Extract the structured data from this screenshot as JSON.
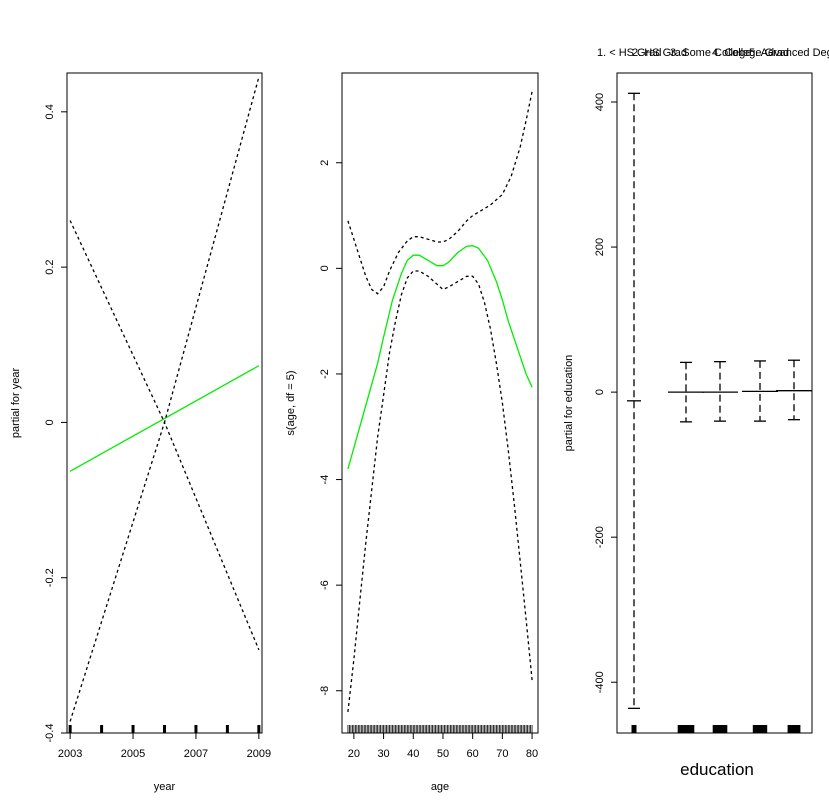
{
  "chart_data": [
    {
      "type": "line",
      "panel": "year",
      "xlabel": "year",
      "ylabel": "partial for year",
      "xlim": [
        2002.9,
        2009.1
      ],
      "ylim": [
        -0.4,
        0.45
      ],
      "xticks": [
        2003,
        2005,
        2007,
        2009
      ],
      "yticks": [
        -0.4,
        -0.2,
        0.0,
        0.2,
        0.4
      ],
      "series": [
        {
          "role": "fit",
          "color": "#00ee00",
          "dash": "",
          "x": [
            2003,
            2009
          ],
          "y": [
            -0.063,
            0.073
          ]
        },
        {
          "role": "upper",
          "color": "#000000",
          "dash": "3,3",
          "x": [
            2003,
            2006,
            2009
          ],
          "y": [
            0.26,
            0.0,
            0.445
          ]
        },
        {
          "role": "lower",
          "color": "#000000",
          "dash": "3,3",
          "x": [
            2003,
            2006,
            2009
          ],
          "y": [
            -0.385,
            0.0,
            -0.293
          ]
        }
      ],
      "rug": [
        2003,
        2004,
        2005,
        2006,
        2007,
        2008,
        2009
      ]
    },
    {
      "type": "line",
      "panel": "age",
      "xlabel": "age",
      "ylabel": "s(age, df = 5)",
      "xlim": [
        16,
        82
      ],
      "ylim": [
        -8.8,
        3.7
      ],
      "xticks": [
        20,
        30,
        40,
        50,
        60,
        70,
        80
      ],
      "yticks": [
        -8,
        -6,
        -4,
        -2,
        0,
        2
      ],
      "series": [
        {
          "role": "fit",
          "color": "#00ee00",
          "dash": "",
          "x": [
            18,
            22,
            25,
            28,
            30,
            33,
            36,
            38,
            40,
            42,
            45,
            48,
            50,
            52,
            55,
            58,
            60,
            62,
            65,
            68,
            70,
            72,
            75,
            78,
            80
          ],
          "y": [
            -3.8,
            -3.0,
            -2.4,
            -1.8,
            -1.3,
            -0.6,
            -0.1,
            0.15,
            0.25,
            0.25,
            0.15,
            0.05,
            0.05,
            0.12,
            0.3,
            0.42,
            0.43,
            0.38,
            0.15,
            -0.25,
            -0.6,
            -1.0,
            -1.5,
            -2.0,
            -2.25
          ]
        },
        {
          "role": "upper",
          "color": "#000000",
          "dash": "3,3",
          "x": [
            18,
            20,
            22,
            24,
            26,
            28,
            30,
            32,
            35,
            38,
            40,
            42,
            45,
            48,
            50,
            52,
            55,
            58,
            60,
            63,
            66,
            70,
            73,
            76,
            78,
            80
          ],
          "y": [
            0.9,
            0.55,
            0.2,
            -0.15,
            -0.4,
            -0.48,
            -0.35,
            -0.05,
            0.3,
            0.52,
            0.6,
            0.6,
            0.55,
            0.5,
            0.5,
            0.55,
            0.7,
            0.9,
            1.0,
            1.1,
            1.2,
            1.4,
            1.75,
            2.3,
            2.8,
            3.35
          ]
        },
        {
          "role": "lower",
          "color": "#000000",
          "dash": "3,3",
          "x": [
            18,
            20,
            22,
            24,
            26,
            28,
            30,
            32,
            34,
            36,
            38,
            40,
            42,
            45,
            48,
            50,
            52,
            55,
            58,
            60,
            62,
            64,
            66,
            68,
            70,
            72,
            74,
            76,
            78,
            80
          ],
          "y": [
            -8.4,
            -7.4,
            -6.3,
            -5.2,
            -4.2,
            -3.2,
            -2.4,
            -1.6,
            -1.0,
            -0.5,
            -0.18,
            -0.05,
            -0.05,
            -0.15,
            -0.3,
            -0.4,
            -0.35,
            -0.25,
            -0.15,
            -0.15,
            -0.3,
            -0.65,
            -1.15,
            -1.8,
            -2.55,
            -3.45,
            -4.45,
            -5.55,
            -6.65,
            -7.8
          ]
        }
      ],
      "rug_range": [
        18,
        80
      ]
    },
    {
      "type": "errorbar",
      "panel": "education",
      "xlabel": "education",
      "ylabel": "partial for education",
      "ylim": [
        -470,
        440
      ],
      "yticks": [
        -400,
        -200,
        0,
        200,
        400
      ],
      "categories": [
        "1. < HS Grad",
        "2. HS Grad",
        "3. Some College",
        "4. College Grad",
        "5. Advanced Degree"
      ],
      "category_labels": [
        "1. < HS Grad",
        "2. HS Grad",
        "3. Some College",
        "4. College Grad",
        "5. Advanced Deg"
      ],
      "values": [
        -12,
        0,
        0,
        1,
        2
      ],
      "upper": [
        412,
        41,
        42,
        43,
        44
      ],
      "lower": [
        -436,
        -41,
        -40,
        -40,
        -38
      ],
      "proportions": [
        0.08,
        0.33,
        0.23,
        0.22,
        0.14
      ]
    }
  ]
}
